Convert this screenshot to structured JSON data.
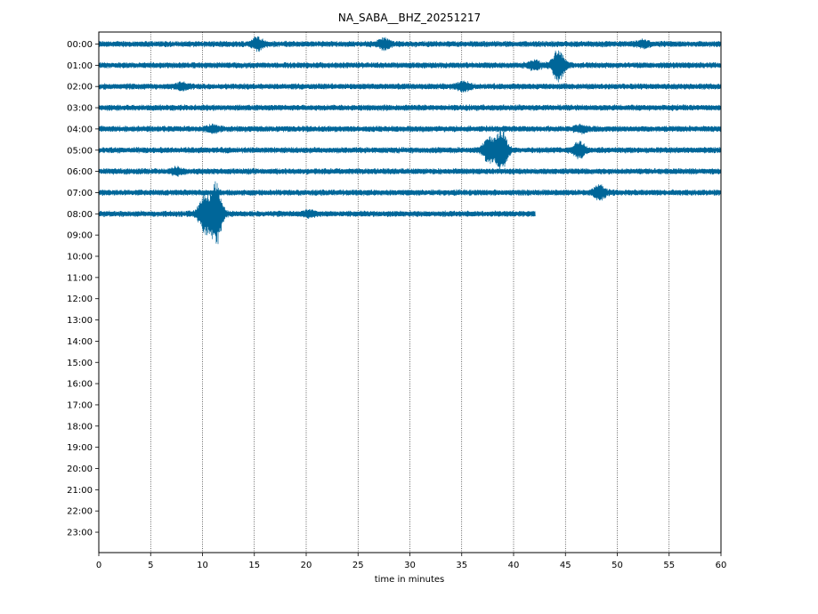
{
  "chart_data": {
    "type": "line",
    "title": "NA_SABA__BHZ_20251217",
    "xlabel": "time in minutes",
    "ylabel": "",
    "xlim": [
      0,
      60
    ],
    "x_ticks": [
      "0",
      "5",
      "10",
      "15",
      "20",
      "25",
      "30",
      "35",
      "40",
      "45",
      "50",
      "55",
      "60"
    ],
    "y_ticks": [
      "00:00",
      "01:00",
      "02:00",
      "03:00",
      "04:00",
      "05:00",
      "06:00",
      "07:00",
      "08:00",
      "09:00",
      "10:00",
      "11:00",
      "12:00",
      "13:00",
      "14:00",
      "15:00",
      "16:00",
      "17:00",
      "18:00",
      "19:00",
      "20:00",
      "21:00",
      "22:00",
      "23:00"
    ],
    "grid": "vertical dotted lines at each x tick",
    "trace_color": "#006699",
    "rows": [
      {
        "hour": "00:00",
        "end_minute": 60,
        "events": [
          {
            "minute": 15.3,
            "strength": 0.45
          },
          {
            "minute": 27.5,
            "strength": 0.35
          },
          {
            "minute": 52.5,
            "strength": 0.2
          }
        ]
      },
      {
        "hour": "01:00",
        "end_minute": 60,
        "events": [
          {
            "minute": 44.3,
            "strength": 1.2
          },
          {
            "minute": 42,
            "strength": 0.3
          }
        ]
      },
      {
        "hour": "02:00",
        "end_minute": 60,
        "events": [
          {
            "minute": 35.2,
            "strength": 0.3
          },
          {
            "minute": 8,
            "strength": 0.2
          }
        ]
      },
      {
        "hour": "03:00",
        "end_minute": 60,
        "events": []
      },
      {
        "hour": "04:00",
        "end_minute": 60,
        "events": [
          {
            "minute": 11,
            "strength": 0.2
          },
          {
            "minute": 46.5,
            "strength": 0.25
          }
        ]
      },
      {
        "hour": "05:00",
        "end_minute": 60,
        "events": [
          {
            "minute": 37.6,
            "strength": 0.9
          },
          {
            "minute": 38.8,
            "strength": 1.6
          },
          {
            "minute": 46.3,
            "strength": 0.6
          }
        ]
      },
      {
        "hour": "06:00",
        "end_minute": 60,
        "events": [
          {
            "minute": 7.5,
            "strength": 0.2
          }
        ]
      },
      {
        "hour": "07:00",
        "end_minute": 60,
        "events": [
          {
            "minute": 48.3,
            "strength": 0.5
          }
        ]
      },
      {
        "hour": "08:00",
        "end_minute": 42.1,
        "events": [
          {
            "minute": 10.2,
            "strength": 1.4
          },
          {
            "minute": 11.3,
            "strength": 2.4
          },
          {
            "minute": 20.3,
            "strength": 0.2
          }
        ]
      }
    ]
  }
}
